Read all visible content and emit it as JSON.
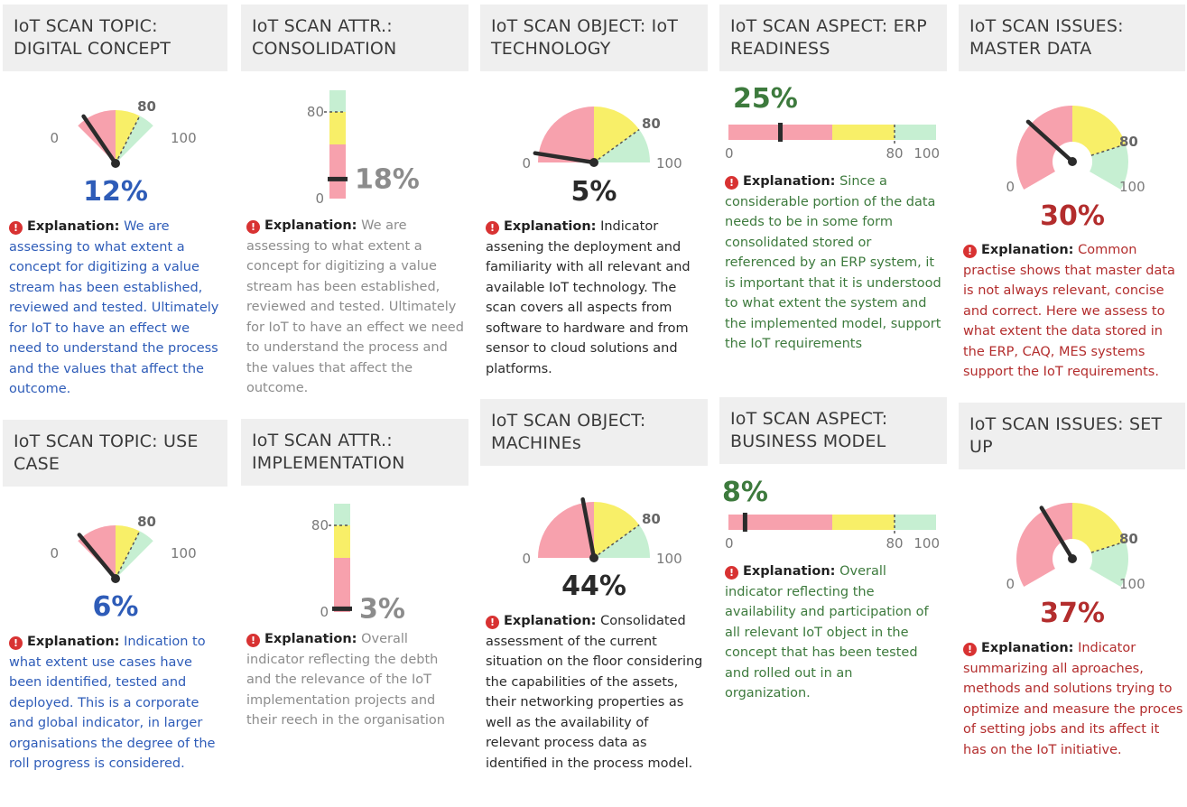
{
  "colors": {
    "red": "#f7a1ad",
    "yellow": "#f8ef68",
    "green": "#c6efd2",
    "needle": "#2b2b2b",
    "blue": "#2e5cb8",
    "gray": "#8c8c8c",
    "green_text": "#3d7a3d",
    "red_text": "#b32d2d",
    "dark": "#2a2a2a"
  },
  "explanation_label": "Explanation:",
  "icon": "exclamation-circle-icon",
  "scales": {
    "min": "0",
    "mark": "80",
    "max": "100"
  },
  "cards": {
    "c1": {
      "title": "IoT SCAN TOPIC: DIGITAL CONCEPT",
      "value": 12,
      "value_text": "12%",
      "chart_type": "semicircle-gauge",
      "explanation": "We are assessing to what extent a concept for digitizing a value stream has been established, reviewed and tested. Ultimately for IoT to have an effect we need to understand the process and the values that affect the outcome."
    },
    "c2": {
      "title": "IoT SCAN ATTR.: CONSOLIDATION",
      "value": 18,
      "value_text": "18%",
      "chart_type": "vertical-bar-gauge",
      "explanation": "We are assessing to what extent a concept for digitizing a value stream has been established, reviewed and tested. Ultimately for IoT to have an effect we need to understand the process and the values that affect the outcome."
    },
    "c3": {
      "title": "IoT SCAN OBJECT: IoT TECHNOLOGY",
      "value": 5,
      "value_text": "5%",
      "chart_type": "quarter-gauge",
      "explanation": "Indicator assening the deployment and familiarity with all relevant and available IoT technology. The scan covers all aspects from software to hardware and from sensor to cloud solutions and platforms."
    },
    "c4": {
      "title": "IoT SCAN ASPECT: ERP READINESS",
      "value": 25,
      "value_text": "25%",
      "chart_type": "horizontal-bar-gauge",
      "explanation": "Since a considerable portion of the data needs to be in some form consolidated stored or referenced by an ERP system, it is important that it is understood to what extent the system and the implemented model, support the IoT requirements"
    },
    "c5": {
      "title": "IoT SCAN ISSUES: MASTER DATA",
      "value": 30,
      "value_text": "30%",
      "chart_type": "ring-gauge",
      "explanation": "Common practise shows that master data is not always relevant, concise and correct. Here we assess to what extent the data stored in the ERP, CAQ, MES systems support the IoT requirements."
    },
    "c6": {
      "title": "IoT SCAN TOPIC: USE CASE",
      "value": 6,
      "value_text": "6%",
      "chart_type": "semicircle-gauge",
      "explanation": "Indication to what extent use cases have been identified, tested and deployed. This is a corporate and global indicator, in larger organisations the degree of the roll progress is considered."
    },
    "c7": {
      "title": "IoT SCAN ATTR.: IMPLEMENTATION",
      "value": 3,
      "value_text": "3%",
      "chart_type": "vertical-bar-gauge",
      "explanation": "Overall indicator reflecting the debth and the relevance of the IoT implementation projects and their reech in the organisation"
    },
    "c8": {
      "title": "IoT SCAN OBJECT: MACHINEs",
      "value": 44,
      "value_text": "44%",
      "chart_type": "quarter-gauge",
      "explanation": "Consolidated assessment of the current situation on the floor considering the capabilities of the assets, their networking properties as well as the availability of relevant process data as identified in the process model."
    },
    "c9": {
      "title": "IoT SCAN ASPECT: BUSINESS MODEL",
      "value": 8,
      "value_text": "8%",
      "chart_type": "horizontal-bar-gauge",
      "explanation": "Overall indicator reflecting the availability and participation of all relevant IoT object in the concept that has been tested and rolled out in an organization."
    },
    "c10": {
      "title": "IoT SCAN ISSUES: SET UP",
      "value": 37,
      "value_text": "37%",
      "chart_type": "ring-gauge",
      "explanation": "Indicator summarizing all aproaches, methods and solutions trying to optimize and measure the proces of setting jobs and its affect it has on the IoT initiative."
    }
  }
}
